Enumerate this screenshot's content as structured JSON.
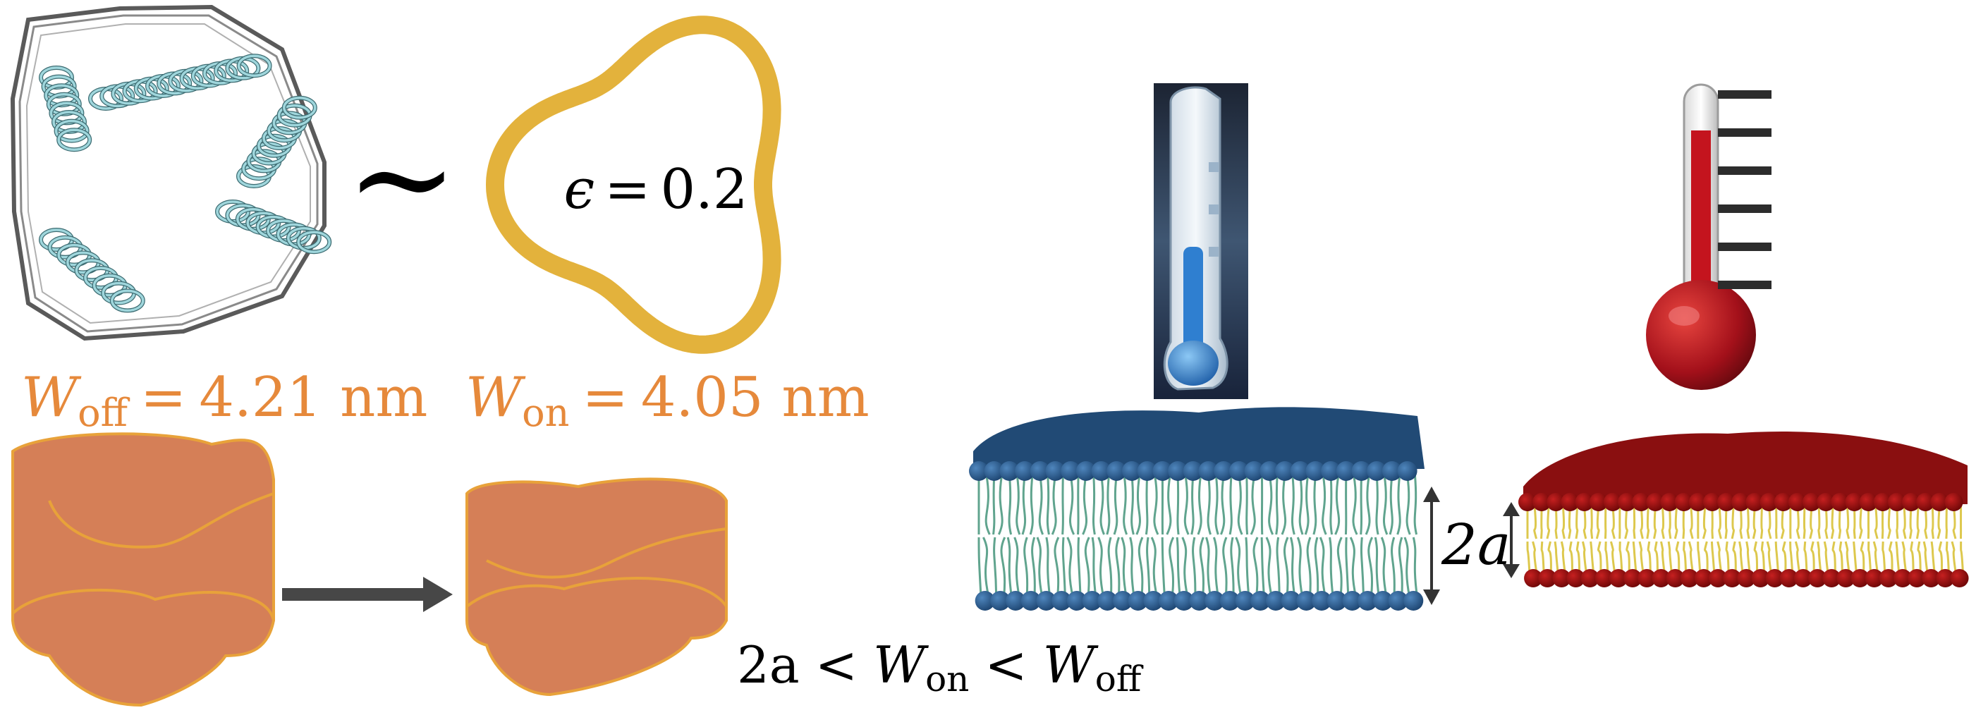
{
  "figure": {
    "approx_symbol": "∼",
    "shape_label": {
      "var": "ϵ",
      "eq": "=",
      "value": "0.2"
    },
    "w_off_label": {
      "var": "W",
      "sub": "off",
      "eq": "=",
      "value": "4.21",
      "unit": "nm"
    },
    "w_on_label": {
      "var": "W",
      "sub": "on",
      "eq": "=",
      "value": "4.05",
      "unit": "nm"
    },
    "thickness_label": "2a",
    "inequality": {
      "lhs": "2a",
      "lt": "<",
      "mid_var": "W",
      "mid_sub": "on",
      "rhs_var": "W",
      "rhs_sub": "off"
    },
    "colors": {
      "orange_text": "#e6893b",
      "gold_ring": "#e3b23c",
      "cylinder_fill": "#d57f57",
      "cylinder_edge": "#e8a23a",
      "arrow": "#474747",
      "cold_lipid_head": "#224f7c",
      "cold_lipid_tail": "#4f9a82",
      "hot_lipid_head": "#8e1010",
      "hot_lipid_tail": "#d9c23a",
      "helix": "#9fd6dc"
    },
    "icons": [
      "protein-helix-bundle-icon",
      "cold-thermometer-icon",
      "hot-thermometer-icon",
      "lipid-bilayer-icon"
    ]
  }
}
